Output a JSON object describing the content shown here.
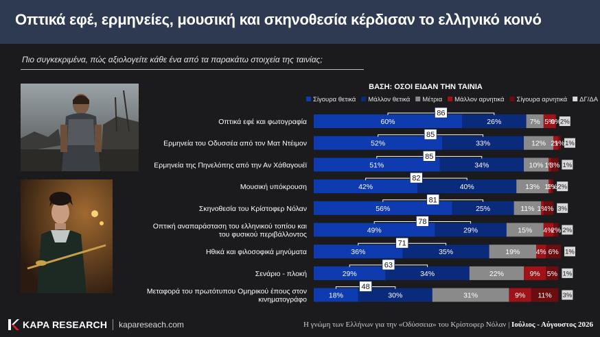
{
  "header": {
    "title": "Οπτικά εφέ, ερμηνείες, μουσική και σκηνοθεσία κέρδισαν το ελληνικό κοινό"
  },
  "question": "Πιο συγκεκριμένα, πώς αξιολογείτε κάθε ένα από τα παρακάτω στοιχεία της ταινίας;",
  "footer": {
    "brand": "KAPA RESEARCH",
    "site": "kapareseach.com",
    "caption_main": "Η γνώμη των Ελλήνων για την «Οδύσσεια» του Κρίστοφερ Νόλαν | ",
    "caption_date": "Ιούλιος - Αύγουστος 2026"
  },
  "colors": {
    "surely_positive": "#0f3bb0",
    "rather_positive": "#0a2a7c",
    "medium": "#8a8a8a",
    "rather_negative": "#9e1218",
    "surely_negative": "#6a0c10",
    "dk_na": "#d9d9d9"
  },
  "chart_data": {
    "type": "bar",
    "stacked": true,
    "orientation": "horizontal",
    "title": "ΒΑΣΗ: ΟΣΟΙ ΕΙΔΑΝ ΤΗΝ ΤΑΙΝΙΑ",
    "legend_position": "top",
    "categories": [
      "Οπτικά εφέ και φωτογραφία",
      "Ερμηνεία του Οδυσσέα από τον Ματ Ντέιμον",
      "Ερμηνεία της Πηνελόπης από την Αν Χάθαγουέϊ",
      "Μουσική υπόκρουση",
      "Σκηνοθεσία του Κρίστοφερ Νόλαν",
      "Οπτική αναπαράσταση του ελληνικού τοπίου και του φυσικού περιβάλλοντος",
      "Ηθικά και φιλοσοφικά μηνύματα",
      "Σενάριο - πλοκή",
      "Μεταφορά του πρωτότυπου Ομηρικού έπους στον κινηματογράφο"
    ],
    "series": [
      {
        "name": "Σίγουρα θετικά",
        "values": [
          60,
          52,
          51,
          42,
          56,
          49,
          36,
          29,
          18
        ]
      },
      {
        "name": "Μάλλον θετικά",
        "values": [
          26,
          33,
          34,
          40,
          25,
          29,
          35,
          34,
          30
        ]
      },
      {
        "name": "Μέτρια",
        "values": [
          7,
          12,
          10,
          13,
          11,
          15,
          19,
          22,
          31
        ]
      },
      {
        "name": "Μάλλον αρνητικά",
        "values": [
          5,
          2,
          1,
          1,
          1,
          4,
          4,
          9,
          9
        ]
      },
      {
        "name": "Σίγουρα αρνητικά",
        "values": [
          0,
          1,
          3,
          1,
          4,
          2,
          6,
          5,
          11
        ]
      },
      {
        "name": "ΔΓ/ΔΑ",
        "values": [
          2,
          1,
          1,
          2,
          3,
          2,
          1,
          1,
          3
        ]
      }
    ],
    "totals_positive": [
      86,
      85,
      85,
      82,
      81,
      78,
      71,
      63,
      48
    ]
  }
}
